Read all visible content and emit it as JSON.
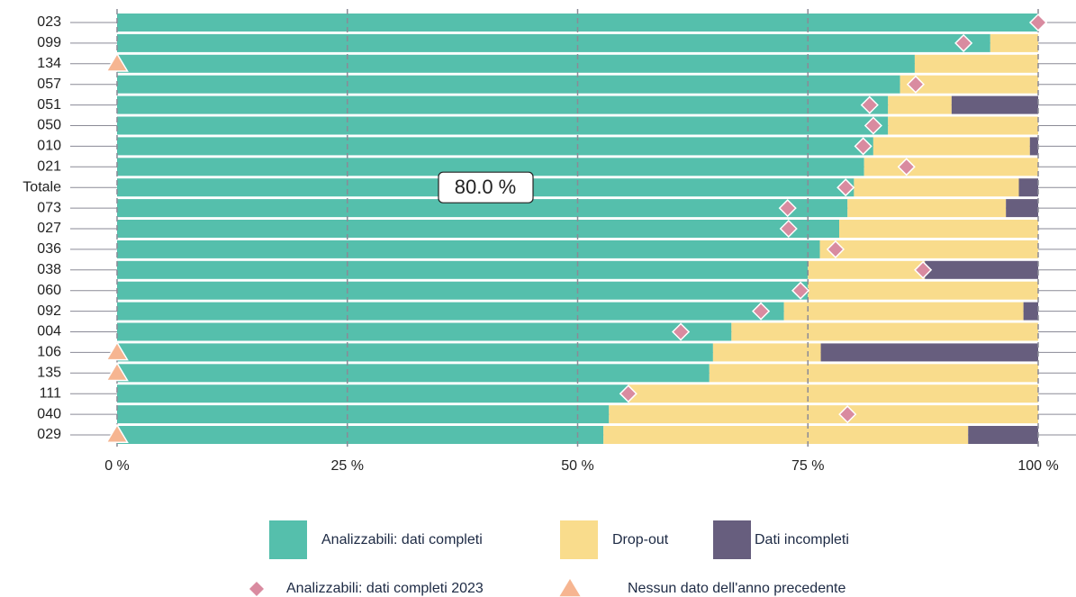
{
  "chart_data": {
    "type": "stacked-bar-horizontal",
    "categories": [
      "023",
      "099",
      "134",
      "057",
      "051",
      "050",
      "010",
      "021",
      "Totale",
      "073",
      "027",
      "036",
      "038",
      "060",
      "092",
      "004",
      "106",
      "135",
      "111",
      "040",
      "029"
    ],
    "series": [
      {
        "name": "Analizzabili: dati completi",
        "color": "#55bfac",
        "values": [
          100,
          94.8,
          86.6,
          85.0,
          83.7,
          83.7,
          82.1,
          81.1,
          80.0,
          79.3,
          78.4,
          76.3,
          75.0,
          75.0,
          72.4,
          66.7,
          64.7,
          64.3,
          55.5,
          53.4,
          52.8
        ]
      },
      {
        "name": "Drop-out",
        "color": "#f9dc8c",
        "values": [
          0,
          5.2,
          13.4,
          15.0,
          6.9,
          16.3,
          17.0,
          18.9,
          17.9,
          17.2,
          21.6,
          23.7,
          12.7,
          25.0,
          26.0,
          33.3,
          11.7,
          35.7,
          44.5,
          46.6,
          39.6
        ]
      },
      {
        "name": "Dati incompleti",
        "color": "#675e7e",
        "values": [
          0,
          0,
          0,
          0,
          9.4,
          0,
          0.9,
          0,
          2.1,
          3.5,
          0,
          0,
          12.3,
          0,
          1.6,
          0,
          23.6,
          0,
          0,
          0,
          7.6
        ]
      }
    ],
    "markers": [
      {
        "name": "Analizzabili: dati completi 2023",
        "shape": "diamond",
        "color": "#d98ba0",
        "values": [
          100,
          91.9,
          null,
          86.7,
          81.7,
          82.1,
          81.0,
          85.7,
          79.1,
          72.8,
          72.9,
          78.0,
          87.5,
          74.2,
          69.9,
          61.2,
          null,
          null,
          55.5,
          79.3,
          null
        ]
      },
      {
        "name": "Nessun dato dell'anno precedente",
        "shape": "triangle",
        "color": "#f6b591",
        "values": [
          null,
          null,
          0,
          null,
          null,
          null,
          null,
          null,
          null,
          null,
          null,
          null,
          null,
          null,
          null,
          null,
          0,
          0,
          null,
          null,
          0
        ]
      }
    ],
    "annotations": [
      {
        "text": "80.0 %",
        "category": "Totale"
      }
    ],
    "xlim": [
      0,
      100
    ],
    "xticks": [
      {
        "value": 0,
        "label": "0 %"
      },
      {
        "value": 25,
        "label": "25 %"
      },
      {
        "value": 50,
        "label": "50 %"
      },
      {
        "value": 75,
        "label": "75 %"
      },
      {
        "value": 100,
        "label": "100 %"
      }
    ],
    "grid": true
  }
}
